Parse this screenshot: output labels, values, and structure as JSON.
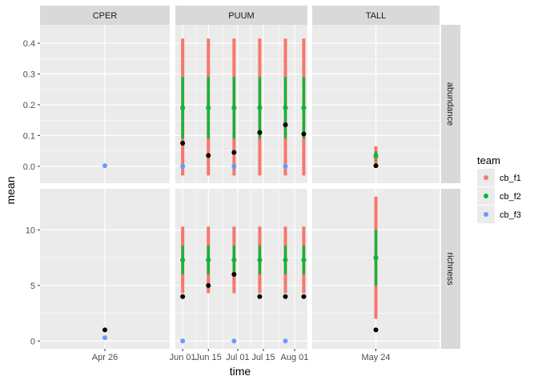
{
  "chart_data": {
    "type": "scatter",
    "xlabel": "time",
    "ylabel": "mean",
    "legend": {
      "title": "team",
      "position": "right",
      "entries": [
        {
          "name": "cb_f1",
          "color": "#F8766D"
        },
        {
          "name": "cb_f2",
          "color": "#00BA38"
        },
        {
          "name": "cb_f3",
          "color": "#619CFF"
        }
      ]
    },
    "observed_color": "#000000",
    "grid": true,
    "facet_columns": [
      {
        "key": "CPER",
        "label": "CPER",
        "xlim": [
          "2019-04-21",
          "2019-05-01"
        ],
        "x_ticks": [
          {
            "date": "2019-04-26",
            "label": "Apr 26"
          }
        ]
      },
      {
        "key": "PUUM",
        "label": "PUUM",
        "xlim": [
          "2019-05-28",
          "2019-08-08"
        ],
        "x_ticks": [
          {
            "date": "2019-06-01",
            "label": "Jun 01"
          },
          {
            "date": "2019-06-15",
            "label": "Jun 15"
          },
          {
            "date": "2019-07-01",
            "label": "Jul 01"
          },
          {
            "date": "2019-07-15",
            "label": "Jul 15"
          },
          {
            "date": "2019-08-01",
            "label": "Aug 01"
          }
        ]
      },
      {
        "key": "TALL",
        "label": "TALL",
        "xlim": [
          "2019-05-19",
          "2019-05-29"
        ],
        "x_ticks": [
          {
            "date": "2019-05-24",
            "label": "May 24"
          }
        ]
      }
    ],
    "facet_rows": [
      {
        "key": "abundance",
        "label": "abundance",
        "ylim": [
          -0.055,
          0.46
        ],
        "y_ticks": [
          {
            "value": 0.0,
            "label": "0.0"
          },
          {
            "value": 0.1,
            "label": "0.1"
          },
          {
            "value": 0.2,
            "label": "0.2"
          },
          {
            "value": 0.3,
            "label": "0.3"
          },
          {
            "value": 0.4,
            "label": "0.4"
          }
        ]
      },
      {
        "key": "richness",
        "label": "richness",
        "ylim": [
          -0.7,
          13.7
        ],
        "y_ticks": [
          {
            "value": 0,
            "label": "0"
          },
          {
            "value": 5,
            "label": "5"
          },
          {
            "value": 10,
            "label": "10"
          }
        ]
      }
    ],
    "series": [
      {
        "name": "cb_f1",
        "color": "#F8766D",
        "points": [
          {
            "col": "PUUM",
            "row": "abundance",
            "x": "2019-06-01",
            "y": 0.19,
            "lo": -0.03,
            "hi": 0.415
          },
          {
            "col": "PUUM",
            "row": "abundance",
            "x": "2019-06-15",
            "y": 0.19,
            "lo": -0.03,
            "hi": 0.415
          },
          {
            "col": "PUUM",
            "row": "abundance",
            "x": "2019-06-29",
            "y": 0.19,
            "lo": -0.03,
            "hi": 0.415
          },
          {
            "col": "PUUM",
            "row": "abundance",
            "x": "2019-07-13",
            "y": 0.19,
            "lo": -0.03,
            "hi": 0.415
          },
          {
            "col": "PUUM",
            "row": "abundance",
            "x": "2019-07-27",
            "y": 0.19,
            "lo": -0.03,
            "hi": 0.415
          },
          {
            "col": "PUUM",
            "row": "abundance",
            "x": "2019-08-06",
            "y": 0.19,
            "lo": -0.03,
            "hi": 0.415
          },
          {
            "col": "TALL",
            "row": "abundance",
            "x": "2019-05-24",
            "y": 0.03,
            "lo": 0.0,
            "hi": 0.065
          },
          {
            "col": "PUUM",
            "row": "richness",
            "x": "2019-06-01",
            "y": 7.3,
            "lo": 4.3,
            "hi": 10.3
          },
          {
            "col": "PUUM",
            "row": "richness",
            "x": "2019-06-15",
            "y": 7.3,
            "lo": 4.3,
            "hi": 10.3
          },
          {
            "col": "PUUM",
            "row": "richness",
            "x": "2019-06-29",
            "y": 7.3,
            "lo": 4.3,
            "hi": 10.3
          },
          {
            "col": "PUUM",
            "row": "richness",
            "x": "2019-07-13",
            "y": 7.3,
            "lo": 4.3,
            "hi": 10.3
          },
          {
            "col": "PUUM",
            "row": "richness",
            "x": "2019-07-27",
            "y": 7.3,
            "lo": 4.3,
            "hi": 10.3
          },
          {
            "col": "PUUM",
            "row": "richness",
            "x": "2019-08-06",
            "y": 7.3,
            "lo": 4.3,
            "hi": 10.3
          },
          {
            "col": "TALL",
            "row": "richness",
            "x": "2019-05-24",
            "y": 7.5,
            "lo": 2.0,
            "hi": 13.0
          }
        ]
      },
      {
        "name": "cb_f2",
        "color": "#00BA38",
        "points": [
          {
            "col": "PUUM",
            "row": "abundance",
            "x": "2019-06-01",
            "y": 0.19,
            "lo": 0.09,
            "hi": 0.29
          },
          {
            "col": "PUUM",
            "row": "abundance",
            "x": "2019-06-15",
            "y": 0.19,
            "lo": 0.09,
            "hi": 0.29
          },
          {
            "col": "PUUM",
            "row": "abundance",
            "x": "2019-06-29",
            "y": 0.19,
            "lo": 0.09,
            "hi": 0.29
          },
          {
            "col": "PUUM",
            "row": "abundance",
            "x": "2019-07-13",
            "y": 0.19,
            "lo": 0.09,
            "hi": 0.29
          },
          {
            "col": "PUUM",
            "row": "abundance",
            "x": "2019-07-27",
            "y": 0.19,
            "lo": 0.09,
            "hi": 0.29
          },
          {
            "col": "PUUM",
            "row": "abundance",
            "x": "2019-08-06",
            "y": 0.19,
            "lo": 0.09,
            "hi": 0.29
          },
          {
            "col": "TALL",
            "row": "abundance",
            "x": "2019-05-24",
            "y": 0.035,
            "lo": 0.018,
            "hi": 0.048
          },
          {
            "col": "PUUM",
            "row": "richness",
            "x": "2019-06-01",
            "y": 7.3,
            "lo": 6.0,
            "hi": 8.6
          },
          {
            "col": "PUUM",
            "row": "richness",
            "x": "2019-06-15",
            "y": 7.3,
            "lo": 6.0,
            "hi": 8.6
          },
          {
            "col": "PUUM",
            "row": "richness",
            "x": "2019-06-29",
            "y": 7.3,
            "lo": 6.0,
            "hi": 8.6
          },
          {
            "col": "PUUM",
            "row": "richness",
            "x": "2019-07-13",
            "y": 7.3,
            "lo": 6.0,
            "hi": 8.6
          },
          {
            "col": "PUUM",
            "row": "richness",
            "x": "2019-07-27",
            "y": 7.3,
            "lo": 6.0,
            "hi": 8.6
          },
          {
            "col": "PUUM",
            "row": "richness",
            "x": "2019-08-06",
            "y": 7.3,
            "lo": 6.0,
            "hi": 8.6
          },
          {
            "col": "TALL",
            "row": "richness",
            "x": "2019-05-24",
            "y": 7.5,
            "lo": 5.0,
            "hi": 10.0
          }
        ]
      },
      {
        "name": "cb_f3",
        "color": "#619CFF",
        "points": [
          {
            "col": "CPER",
            "row": "abundance",
            "x": "2019-04-26",
            "y": 0.002
          },
          {
            "col": "PUUM",
            "row": "abundance",
            "x": "2019-06-01",
            "y": 0.0
          },
          {
            "col": "PUUM",
            "row": "abundance",
            "x": "2019-06-29",
            "y": 0.0
          },
          {
            "col": "PUUM",
            "row": "abundance",
            "x": "2019-07-27",
            "y": 0.0
          },
          {
            "col": "CPER",
            "row": "richness",
            "x": "2019-04-26",
            "y": 0.3
          },
          {
            "col": "PUUM",
            "row": "richness",
            "x": "2019-06-01",
            "y": 0.0
          },
          {
            "col": "PUUM",
            "row": "richness",
            "x": "2019-06-29",
            "y": 0.0
          },
          {
            "col": "PUUM",
            "row": "richness",
            "x": "2019-07-27",
            "y": 0.0
          }
        ]
      }
    ],
    "observed": [
      {
        "col": "PUUM",
        "row": "abundance",
        "x": "2019-06-01",
        "y": 0.075
      },
      {
        "col": "PUUM",
        "row": "abundance",
        "x": "2019-06-15",
        "y": 0.035
      },
      {
        "col": "PUUM",
        "row": "abundance",
        "x": "2019-06-29",
        "y": 0.045
      },
      {
        "col": "PUUM",
        "row": "abundance",
        "x": "2019-07-13",
        "y": 0.11
      },
      {
        "col": "PUUM",
        "row": "abundance",
        "x": "2019-07-27",
        "y": 0.135
      },
      {
        "col": "PUUM",
        "row": "abundance",
        "x": "2019-08-06",
        "y": 0.105
      },
      {
        "col": "TALL",
        "row": "abundance",
        "x": "2019-05-24",
        "y": 0.002
      },
      {
        "col": "CPER",
        "row": "richness",
        "x": "2019-04-26",
        "y": 1
      },
      {
        "col": "PUUM",
        "row": "richness",
        "x": "2019-06-01",
        "y": 4
      },
      {
        "col": "PUUM",
        "row": "richness",
        "x": "2019-06-15",
        "y": 5
      },
      {
        "col": "PUUM",
        "row": "richness",
        "x": "2019-06-29",
        "y": 6
      },
      {
        "col": "PUUM",
        "row": "richness",
        "x": "2019-07-13",
        "y": 4
      },
      {
        "col": "PUUM",
        "row": "richness",
        "x": "2019-07-27",
        "y": 4
      },
      {
        "col": "PUUM",
        "row": "richness",
        "x": "2019-08-06",
        "y": 4
      },
      {
        "col": "TALL",
        "row": "richness",
        "x": "2019-05-24",
        "y": 1
      }
    ]
  }
}
